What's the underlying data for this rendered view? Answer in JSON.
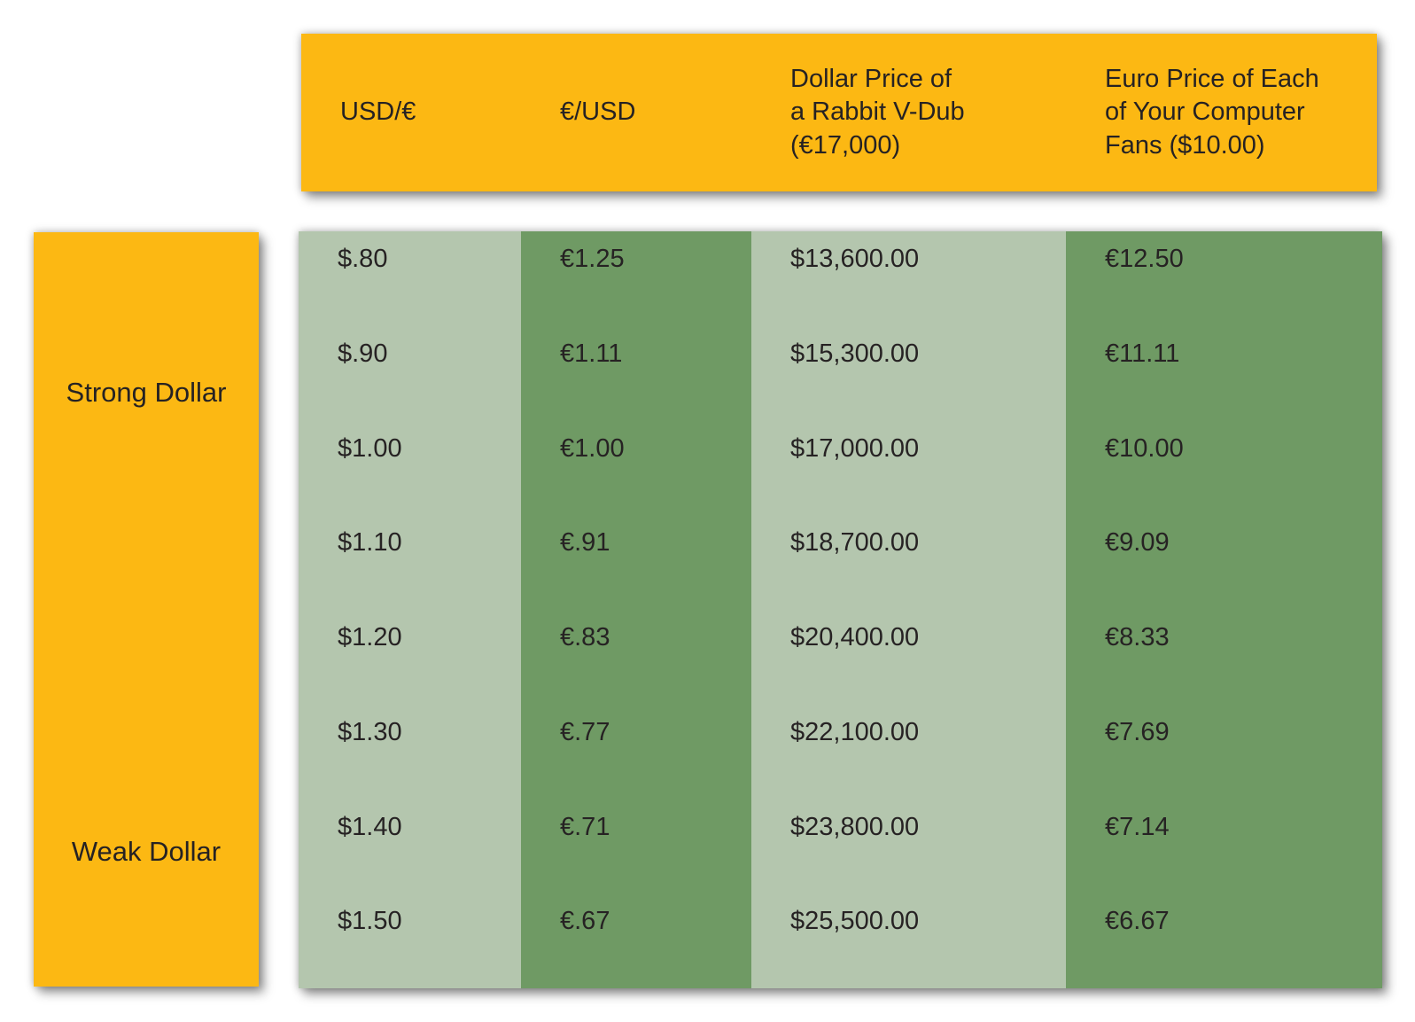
{
  "colors": {
    "header_bg": "#fcb813",
    "sidebar_bg": "#fcb813",
    "column_light_green": "#b4c6ae",
    "column_dark_green": "#6f9a64",
    "text": "#262223",
    "page_bg": "#ffffff"
  },
  "header": {
    "columns": [
      "USD/€",
      "€/USD",
      "Dollar Price of\na Rabbit V-Dub\n(€17,000)",
      "Euro Price of Each\nof Your Computer\nFans ($10.00)"
    ]
  },
  "sidebar": {
    "top_label": "Strong Dollar",
    "bottom_label": "Weak Dollar"
  },
  "chart_data": {
    "type": "table",
    "title": "",
    "columns": [
      "USD/€",
      "€/USD",
      "Dollar Price of a Rabbit V-Dub (€17,000)",
      "Euro Price of Each of Your Computer Fans ($10.00)"
    ],
    "row_group_labels": [
      "Strong Dollar",
      "Weak Dollar"
    ],
    "rows": [
      [
        "$.80",
        "€1.25",
        "$13,600.00",
        "€12.50"
      ],
      [
        "$.90",
        "€1.11",
        "$15,300.00",
        "€11.11"
      ],
      [
        "$1.00",
        "€1.00",
        "$17,000.00",
        "€10.00"
      ],
      [
        "$1.10",
        "€.91",
        "$18,700.00",
        "€9.09"
      ],
      [
        "$1.20",
        "€.83",
        "$20,400.00",
        "€8.33"
      ],
      [
        "$1.30",
        "€.77",
        "$22,100.00",
        "€7.69"
      ],
      [
        "$1.40",
        "€.71",
        "$23,800.00",
        "€7.14"
      ],
      [
        "$1.50",
        "€.67",
        "$25,500.00",
        "€6.67"
      ]
    ]
  }
}
